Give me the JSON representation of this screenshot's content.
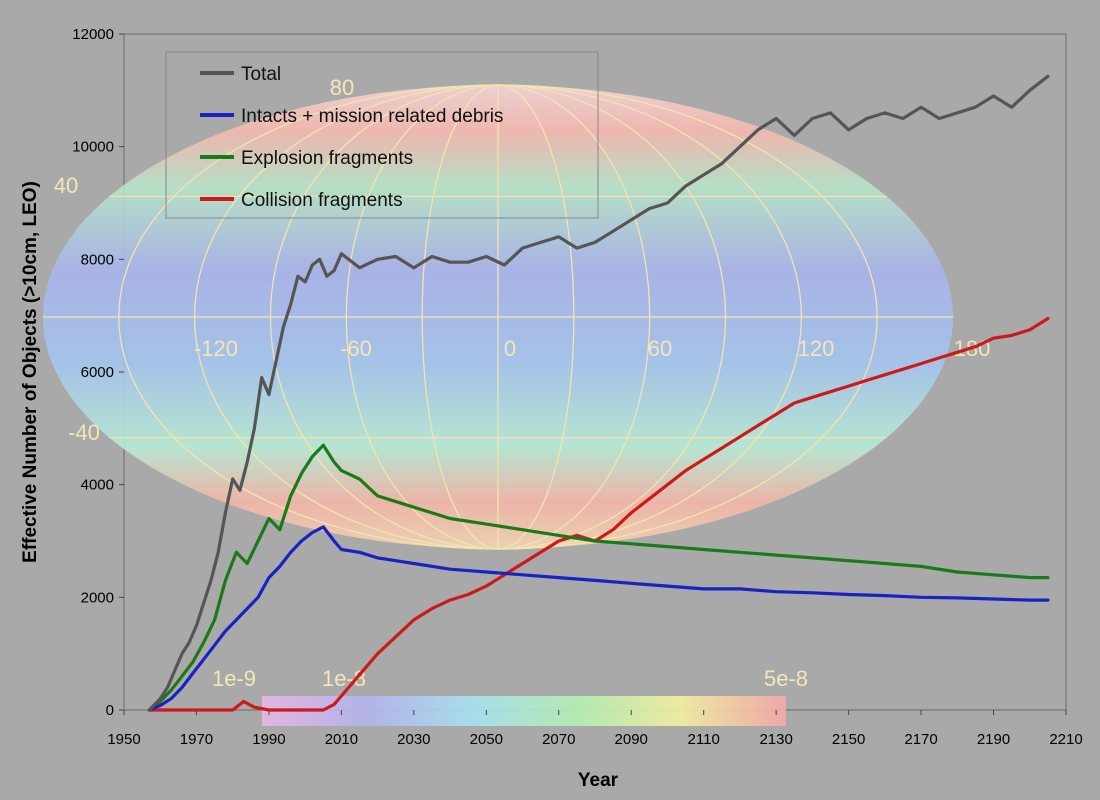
{
  "chart_data": {
    "type": "line",
    "title": "",
    "xlabel": "Year",
    "ylabel": "Effective Number of Objects (>10cm, LEO)",
    "xlim": [
      1950,
      2210
    ],
    "ylim": [
      0,
      12000
    ],
    "x_ticks": [
      1950,
      1970,
      1990,
      2010,
      2030,
      2050,
      2070,
      2090,
      2110,
      2130,
      2150,
      2170,
      2190,
      2210
    ],
    "y_ticks": [
      0,
      2000,
      4000,
      6000,
      8000,
      10000,
      12000
    ],
    "legend_position": "top-left",
    "grid": false,
    "series": [
      {
        "name": "Total",
        "color": "#555555",
        "x": [
          1957,
          1960,
          1962,
          1964,
          1966,
          1968,
          1970,
          1972,
          1974,
          1976,
          1978,
          1980,
          1982,
          1984,
          1986,
          1988,
          1990,
          1992,
          1994,
          1996,
          1998,
          2000,
          2002,
          2004,
          2006,
          2008,
          2010,
          2015,
          2020,
          2025,
          2030,
          2035,
          2040,
          2045,
          2050,
          2055,
          2060,
          2065,
          2070,
          2075,
          2080,
          2085,
          2090,
          2095,
          2100,
          2105,
          2110,
          2115,
          2120,
          2125,
          2130,
          2135,
          2140,
          2145,
          2150,
          2155,
          2160,
          2165,
          2170,
          2175,
          2180,
          2185,
          2190,
          2195,
          2200,
          2205
        ],
        "y": [
          0,
          200,
          400,
          700,
          1000,
          1200,
          1500,
          1900,
          2300,
          2800,
          3500,
          4100,
          3900,
          4400,
          5000,
          5900,
          5600,
          6200,
          6800,
          7200,
          7700,
          7600,
          7900,
          8000,
          7700,
          7800,
          8100,
          7850,
          8000,
          8050,
          7850,
          8050,
          7950,
          7950,
          8050,
          7900,
          8200,
          8300,
          8400,
          8200,
          8300,
          8500,
          8700,
          8900,
          9000,
          9300,
          9500,
          9700,
          10000,
          10300,
          10500,
          10200,
          10500,
          10600,
          10300,
          10500,
          10600,
          10500,
          10700,
          10500,
          10600,
          10700,
          10900,
          10700,
          11000,
          11250
        ]
      },
      {
        "name": "Intacts + mission related debris",
        "color": "#1a22c4",
        "x": [
          1957,
          1960,
          1963,
          1966,
          1969,
          1972,
          1975,
          1978,
          1981,
          1984,
          1987,
          1990,
          1993,
          1996,
          1999,
          2002,
          2005,
          2008,
          2010,
          2015,
          2020,
          2025,
          2030,
          2040,
          2050,
          2060,
          2070,
          2080,
          2090,
          2100,
          2110,
          2120,
          2130,
          2140,
          2150,
          2160,
          2170,
          2180,
          2190,
          2200,
          2205
        ],
        "y": [
          0,
          80,
          200,
          400,
          650,
          900,
          1150,
          1400,
          1600,
          1800,
          2000,
          2350,
          2550,
          2800,
          3000,
          3150,
          3250,
          3000,
          2850,
          2800,
          2700,
          2650,
          2600,
          2500,
          2450,
          2400,
          2350,
          2300,
          2250,
          2200,
          2150,
          2150,
          2100,
          2080,
          2050,
          2030,
          2000,
          1990,
          1970,
          1950,
          1950
        ]
      },
      {
        "name": "Explosion fragments",
        "color": "#1a7a1a",
        "x": [
          1957,
          1960,
          1963,
          1966,
          1969,
          1972,
          1975,
          1978,
          1981,
          1984,
          1987,
          1990,
          1993,
          1996,
          1999,
          2002,
          2005,
          2008,
          2010,
          2015,
          2020,
          2030,
          2040,
          2050,
          2060,
          2070,
          2080,
          2090,
          2100,
          2110,
          2120,
          2130,
          2140,
          2150,
          2160,
          2170,
          2180,
          2190,
          2200,
          2205
        ],
        "y": [
          0,
          150,
          350,
          600,
          850,
          1200,
          1600,
          2300,
          2800,
          2600,
          3000,
          3400,
          3200,
          3800,
          4200,
          4500,
          4700,
          4400,
          4250,
          4100,
          3800,
          3600,
          3400,
          3300,
          3200,
          3100,
          3000,
          2950,
          2900,
          2850,
          2800,
          2750,
          2700,
          2650,
          2600,
          2550,
          2450,
          2400,
          2350,
          2350
        ]
      },
      {
        "name": "Collision fragments",
        "color": "#cc1a1a",
        "x": [
          1957,
          1970,
          1980,
          1983,
          1986,
          1990,
          2000,
          2005,
          2008,
          2012,
          2016,
          2020,
          2025,
          2030,
          2035,
          2040,
          2045,
          2050,
          2055,
          2060,
          2065,
          2070,
          2075,
          2080,
          2085,
          2090,
          2095,
          2100,
          2105,
          2110,
          2115,
          2120,
          2125,
          2130,
          2135,
          2140,
          2145,
          2150,
          2155,
          2160,
          2165,
          2170,
          2175,
          2180,
          2185,
          2190,
          2195,
          2200,
          2205
        ],
        "y": [
          0,
          0,
          0,
          150,
          50,
          0,
          0,
          0,
          100,
          400,
          700,
          1000,
          1300,
          1600,
          1800,
          1950,
          2050,
          2200,
          2400,
          2600,
          2800,
          3000,
          3100,
          3000,
          3200,
          3500,
          3750,
          4000,
          4250,
          4450,
          4650,
          4850,
          5050,
          5250,
          5450,
          5550,
          5650,
          5750,
          5850,
          5950,
          6050,
          6150,
          6250,
          6350,
          6450,
          6600,
          6650,
          6750,
          6950
        ]
      }
    ],
    "overlay": {
      "map_longitude_labels": [
        "-120",
        "-60",
        "0",
        "60",
        "120",
        "180"
      ],
      "map_latitude_labels": [
        "80",
        "40",
        "-40"
      ],
      "colorbar_labels": [
        "1e-9",
        "1e-8",
        "5e-8"
      ]
    }
  }
}
